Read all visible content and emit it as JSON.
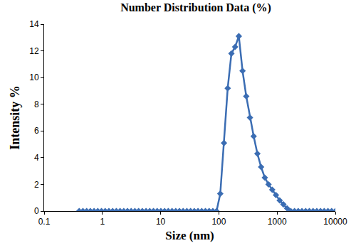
{
  "chart_data": {
    "type": "line",
    "title": "Number Distribution Data (%)",
    "x_label": "Size (nm)",
    "y_label": "Intensity %",
    "log": "x",
    "grid": false,
    "marker": "diamond",
    "line_style": "solid",
    "series": [
      {
        "name": "Number Distribution",
        "color": "#3b6db3",
        "x": [
          0.4,
          0.4632,
          0.5365,
          0.6213,
          0.7195,
          0.8332,
          0.9649,
          1.117,
          1.294,
          1.499,
          1.736,
          2.01,
          2.328,
          2.696,
          3.122,
          3.615,
          4.187,
          4.849,
          5.615,
          6.503,
          7.531,
          8.721,
          10.1,
          11.7,
          13.54,
          15.69,
          18.17,
          21.04,
          24.36,
          28.21,
          32.67,
          37.84,
          43.82,
          50.75,
          58.77,
          68.06,
          78.82,
          91.28,
          105.7,
          122.4,
          141.8,
          164.2,
          190.1,
          220.2,
          255,
          295.3,
          342,
          396.1,
          458.7,
          531.2,
          615.1,
          712.4,
          825,
          955.4,
          1106,
          1281,
          1484,
          1718,
          1990,
          2305,
          2669,
          3091,
          3580,
          4145,
          4801,
          5560,
          6439,
          7456,
          8635,
          10000
        ],
        "values": [
          0,
          0,
          0,
          0,
          0,
          0,
          0,
          0,
          0,
          0,
          0,
          0,
          0,
          0,
          0,
          0,
          0,
          0,
          0,
          0,
          0,
          0,
          0,
          0,
          0,
          0,
          0,
          0,
          0,
          0,
          0,
          0,
          0,
          0,
          0,
          0,
          0,
          0,
          1.3,
          5.1,
          9.2,
          11.8,
          12.3,
          13.1,
          10.5,
          8.6,
          7.0,
          5.6,
          4.3,
          3.3,
          2.5,
          2.0,
          1.6,
          1.2,
          0.8,
          0.5,
          0.2,
          0,
          0,
          0,
          0,
          0,
          0,
          0,
          0,
          0,
          0,
          0,
          0,
          0
        ]
      }
    ],
    "xlim": [
      0.1,
      10000
    ],
    "xticks": [
      0.1,
      1,
      10,
      100,
      1000,
      10000
    ],
    "ylim": [
      0,
      14
    ],
    "yticks": [
      0,
      2,
      4,
      6,
      8,
      10,
      12,
      14
    ]
  }
}
